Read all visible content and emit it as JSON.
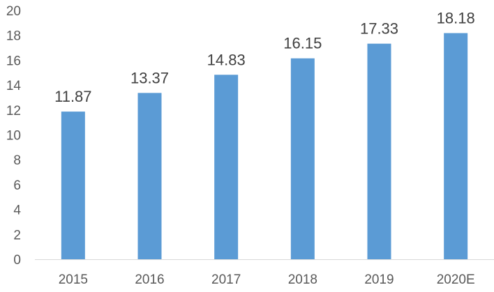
{
  "chart_data": {
    "type": "bar",
    "title": "",
    "xlabel": "",
    "ylabel": "",
    "categories": [
      "2015",
      "2016",
      "2017",
      "2018",
      "2019",
      "2020E"
    ],
    "values": [
      11.87,
      13.37,
      14.83,
      16.15,
      17.33,
      18.18
    ],
    "data_labels": [
      "11.87",
      "13.37",
      "14.83",
      "16.15",
      "17.33",
      "18.18"
    ],
    "ylim": [
      0,
      20
    ],
    "yticks": [
      0,
      2,
      4,
      6,
      8,
      10,
      12,
      14,
      16,
      18,
      20
    ],
    "ytick_labels": [
      "0",
      "2",
      "4",
      "6",
      "8",
      "10",
      "12",
      "14",
      "16",
      "18",
      "20"
    ],
    "grid": false,
    "legend": "none",
    "bar_color": "#5B9BD5",
    "axis_color": "#D9D9D9"
  }
}
